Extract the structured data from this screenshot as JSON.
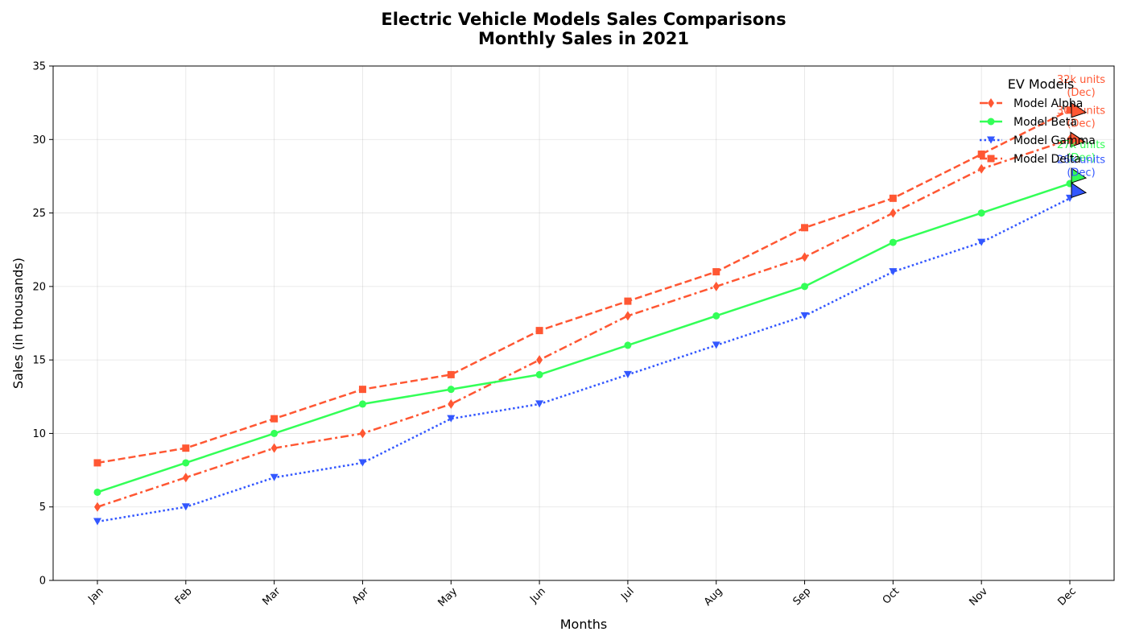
{
  "chart_data": {
    "type": "line",
    "title": "Electric Vehicle Models Sales Comparisons",
    "subtitle": "Monthly Sales in 2021",
    "xlabel": "Months",
    "ylabel": "Sales (in thousands)",
    "categories": [
      "Jan",
      "Feb",
      "Mar",
      "Apr",
      "May",
      "Jun",
      "Jul",
      "Aug",
      "Sep",
      "Oct",
      "Nov",
      "Dec"
    ],
    "ylim": [
      0,
      35
    ],
    "yticks": [
      "0",
      "5",
      "10",
      "15",
      "20",
      "25",
      "30",
      "35"
    ],
    "grid": true,
    "legend": {
      "title": "EV Models",
      "placement": "top-right"
    },
    "series": [
      {
        "name": "Model Alpha",
        "color": "#ff5733",
        "linestyle": "dashdot",
        "marker": "diamond",
        "values": [
          5,
          7,
          9,
          10,
          12,
          15,
          18,
          20,
          22,
          25,
          28,
          30
        ],
        "annotation": {
          "line1": "30k units",
          "line2": "(Dec)"
        }
      },
      {
        "name": "Model Beta",
        "color": "#33ff57",
        "linestyle": "solid",
        "marker": "circle",
        "values": [
          6,
          8,
          10,
          12,
          13,
          14,
          16,
          18,
          20,
          23,
          25,
          27
        ],
        "annotation": {
          "line1": "27k units",
          "line2": "(Dec)"
        }
      },
      {
        "name": "Model Gamma",
        "color": "#3357ff",
        "linestyle": "dotted",
        "marker": "triangle-down",
        "values": [
          4,
          5,
          7,
          8,
          11,
          12,
          14,
          16,
          18,
          21,
          23,
          26
        ],
        "annotation": {
          "line1": "26k units",
          "line2": "(Dec)"
        }
      },
      {
        "name": "Model Delta",
        "color": "#ff5733",
        "linestyle": "dashed",
        "marker": "square",
        "values": [
          8,
          9,
          11,
          13,
          14,
          17,
          19,
          21,
          24,
          26,
          29,
          32
        ],
        "annotation": {
          "line1": "32k units",
          "line2": "(Dec)"
        }
      }
    ]
  }
}
